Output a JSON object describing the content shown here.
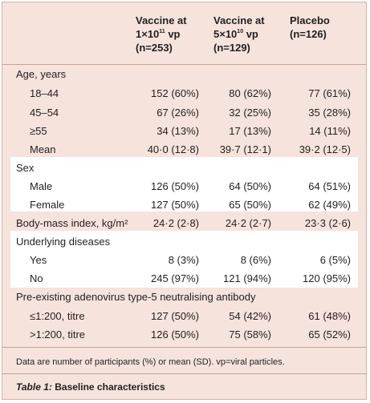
{
  "header": {
    "col1": {
      "line1": "Vaccine at",
      "coef": "1×10",
      "exp": "11",
      "unit": " vp",
      "n": "(n=253)"
    },
    "col2": {
      "line1": "Vaccine at",
      "coef": "5×10",
      "exp": "10",
      "unit": " vp",
      "n": "(n=129)"
    },
    "col3": {
      "line1": "Placebo",
      "n": "(n=126)"
    }
  },
  "rows": [
    {
      "label": "Age, years",
      "v1": "",
      "v2": "",
      "v3": ""
    },
    {
      "label": "18–44",
      "v1": "152 (60%)",
      "v2": "80 (62%)",
      "v3": "77 (61%)"
    },
    {
      "label": "45–54",
      "v1": "67 (26%)",
      "v2": "32 (25%)",
      "v3": "35 (28%)"
    },
    {
      "label": "≥55",
      "v1": "34 (13%)",
      "v2": "17 (13%)",
      "v3": "14 (11%)"
    },
    {
      "label": "Mean",
      "v1": "40·0 (12·8)",
      "v2": "39·7 (12·1)",
      "v3": "39·2 (12·5)"
    },
    {
      "label": "Sex",
      "v1": "",
      "v2": "",
      "v3": ""
    },
    {
      "label": "Male",
      "v1": "126 (50%)",
      "v2": "64 (50%)",
      "v3": "64 (51%)"
    },
    {
      "label": "Female",
      "v1": "127 (50%)",
      "v2": "65 (50%)",
      "v3": "62 (49%)"
    },
    {
      "label": "Body-mass index, kg/m²",
      "v1": "24·2 (2·8)",
      "v2": "24·2 (2·7)",
      "v3": "23·3 (2·6)"
    },
    {
      "label": "Underlying diseases",
      "v1": "",
      "v2": "",
      "v3": ""
    },
    {
      "label": "Yes",
      "v1": "8 (3%)",
      "v2": "8 (6%)",
      "v3": "6 (5%)"
    },
    {
      "label": "No",
      "v1": "245 (97%)",
      "v2": "121 (94%)",
      "v3": "120 (95%)"
    },
    {
      "label": "Pre-existing adenovirus type-5 neutralising antibody",
      "v1": "",
      "v2": "",
      "v3": ""
    },
    {
      "label": "≤1:200, titre",
      "v1": "127 (50%)",
      "v2": "54 (42%)",
      "v3": "61 (48%)"
    },
    {
      "label": ">1:200, titre",
      "v1": "126 (50%)",
      "v2": "75 (58%)",
      "v3": "65 (52%)"
    }
  ],
  "footnote": "Data are number of participants (%) or mean (SD). vp=viral particles.",
  "caption": {
    "label": "Table 1:",
    "text": " Baseline characteristics"
  }
}
